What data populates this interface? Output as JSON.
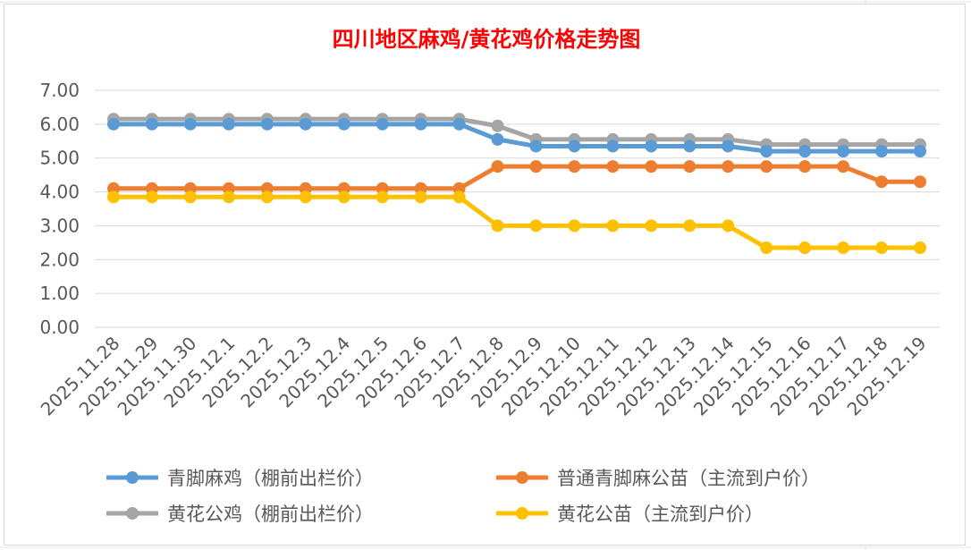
{
  "chart_data": {
    "type": "line",
    "title": "四川地区麻鸡/黄花鸡价格走势图",
    "title_color": "#ff0000",
    "ylim": [
      0,
      7
    ],
    "y_ticks": [
      "0.00",
      "1.00",
      "2.00",
      "3.00",
      "4.00",
      "5.00",
      "6.00",
      "7.00"
    ],
    "grid": true,
    "legend_position": "bottom",
    "categories": [
      "2025.11.28",
      "2025.11.29",
      "2025.11.30",
      "2025.12.1",
      "2025.12.2",
      "2025.12.3",
      "2025.12.4",
      "2025.12.5",
      "2025.12.6",
      "2025.12.7",
      "2025.12.8",
      "2025.12.9",
      "2025.12.10",
      "2025.12.11",
      "2025.12.12",
      "2025.12.13",
      "2025.12.14",
      "2025.12.15",
      "2025.12.16",
      "2025.12.17",
      "2025.12.18",
      "2025.12.19"
    ],
    "series": [
      {
        "name": "青脚麻鸡（棚前出栏价）",
        "color": "#5b9bd5",
        "values": [
          6.0,
          6.0,
          6.0,
          6.0,
          6.0,
          6.0,
          6.0,
          6.0,
          6.0,
          6.0,
          5.55,
          5.35,
          5.35,
          5.35,
          5.35,
          5.35,
          5.35,
          5.2,
          5.2,
          5.2,
          5.2,
          5.2
        ]
      },
      {
        "name": "普通青脚麻公苗（主流到户价）",
        "color": "#ed7d31",
        "values": [
          4.1,
          4.1,
          4.1,
          4.1,
          4.1,
          4.1,
          4.1,
          4.1,
          4.1,
          4.1,
          4.75,
          4.75,
          4.75,
          4.75,
          4.75,
          4.75,
          4.75,
          4.75,
          4.75,
          4.75,
          4.3,
          4.3
        ]
      },
      {
        "name": "黄花公鸡（棚前出栏价）",
        "color": "#a5a5a5",
        "values": [
          6.15,
          6.15,
          6.15,
          6.15,
          6.15,
          6.15,
          6.15,
          6.15,
          6.15,
          6.15,
          5.95,
          5.55,
          5.55,
          5.55,
          5.55,
          5.55,
          5.55,
          5.4,
          5.4,
          5.4,
          5.4,
          5.4
        ]
      },
      {
        "name": "黄花公苗（主流到户价）",
        "color": "#ffc000",
        "values": [
          3.85,
          3.85,
          3.85,
          3.85,
          3.85,
          3.85,
          3.85,
          3.85,
          3.85,
          3.85,
          3.0,
          3.0,
          3.0,
          3.0,
          3.0,
          3.0,
          3.0,
          2.35,
          2.35,
          2.35,
          2.35,
          2.35
        ]
      }
    ]
  }
}
